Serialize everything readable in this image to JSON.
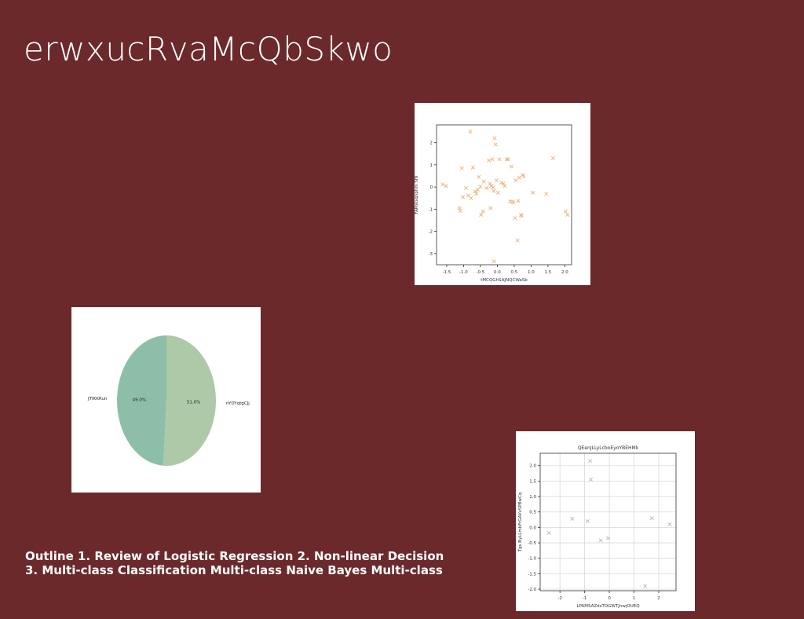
{
  "slide": {
    "title": "erwxucRvaMcQbSkwo",
    "outline_line1": "Outline 1. Review of Logistic Regression 2. Non-linear Decision",
    "outline_line2": "3. Multi-class Classification Multi-class Naive Bayes Multi-class"
  },
  "chart_data": [
    {
      "type": "scatter",
      "title": "",
      "xlabel": "tMCQGhSAJNQCWaSb",
      "ylabel": "FAPoksqnphm   SHi",
      "xlim": [
        -1.8,
        2.2
      ],
      "ylim": [
        -3.5,
        2.8
      ],
      "xticks": [
        -1.5,
        -1.0,
        -0.5,
        0.0,
        0.5,
        1.0,
        1.5,
        2.0
      ],
      "xtick_labels": [
        "-1.5",
        "-1.0",
        "-0.5",
        "0.0",
        "0.5",
        "1.0",
        "1.5",
        "2.0"
      ],
      "yticks": [
        -3,
        -2,
        -1,
        0,
        1,
        2
      ],
      "ytick_labels": [
        "-3",
        "-2",
        "-1",
        "0",
        "1",
        "2"
      ],
      "grid": false,
      "marker": "x",
      "color": "#e8b27a",
      "x": [
        -1.62,
        -1.52,
        -1.12,
        -1.1,
        -1.05,
        -1.02,
        -0.93,
        -0.86,
        -0.78,
        -0.72,
        -0.66,
        -0.62,
        -0.58,
        -0.55,
        -0.5,
        -0.48,
        -0.42,
        -0.4,
        -0.32,
        -0.25,
        -0.22,
        -0.18,
        -0.15,
        -0.12,
        -0.1,
        -0.08,
        -0.05,
        -0.02,
        0.02,
        0.06,
        0.12,
        0.18,
        0.22,
        0.28,
        0.32,
        0.38,
        0.42,
        0.45,
        0.48,
        0.52,
        0.55,
        0.6,
        0.65,
        0.7,
        0.72,
        0.75,
        0.78,
        1.05,
        1.45,
        1.65,
        2.02,
        2.08,
        -0.8,
        -0.1,
        -0.2,
        0.62
      ],
      "y": [
        0.12,
        0.05,
        -0.95,
        -1.08,
        0.85,
        -0.45,
        -0.05,
        -0.38,
        -0.5,
        0.88,
        -0.2,
        -0.3,
        -0.12,
        0.45,
        0.02,
        -1.25,
        -1.1,
        0.25,
        -0.05,
        1.2,
        0.15,
        0.05,
        1.25,
        -0.02,
        -0.18,
        2.2,
        1.92,
        0.3,
        -0.25,
        1.25,
        0.2,
        0.15,
        0.05,
        1.25,
        1.25,
        -0.65,
        0.92,
        -0.65,
        -0.7,
        -1.4,
        0.3,
        -2.4,
        0.42,
        -1.25,
        -1.3,
        0.55,
        0.48,
        -0.25,
        -0.3,
        1.3,
        -1.1,
        -1.25,
        2.5,
        -3.35,
        -0.95,
        -0.62
      ]
    },
    {
      "type": "pie",
      "title": "",
      "labels": [
        "JTIKKRun",
        "nYDYqtgCJj"
      ],
      "values": [
        49.0,
        51.0
      ],
      "value_labels": [
        "49.0%",
        "51.0%"
      ],
      "colors": [
        "#8dbfa8",
        "#adc9a8"
      ]
    },
    {
      "type": "scatter",
      "title": "QEenJLLyLcboEyoYBEHMk",
      "xlabel": "LPAMSAZdsTOGWTJnwjOUEQ",
      "ylabel": "Tgs ByLLmbFrGAVv5PBwCq",
      "xlim": [
        -2.8,
        2.7
      ],
      "ylim": [
        -2.05,
        2.4
      ],
      "xticks": [
        -2,
        -1,
        0,
        1,
        2
      ],
      "xtick_labels": [
        "-2",
        "-1",
        "0",
        "1",
        "2"
      ],
      "yticks": [
        -2.0,
        -1.5,
        -1.0,
        -0.5,
        0.0,
        0.5,
        1.0,
        1.5,
        2.0
      ],
      "ytick_labels": [
        "-2.0",
        "-1.5",
        "-1.0",
        "-0.5",
        "0.0",
        "0.5",
        "1.0",
        "1.5",
        "2.0"
      ],
      "grid": true,
      "marker": "x",
      "color": "#b8b8b8",
      "x": [
        -2.45,
        -1.5,
        -0.88,
        -0.78,
        -0.75,
        -0.35,
        -0.05,
        1.45,
        1.72,
        2.45
      ],
      "y": [
        -0.18,
        0.28,
        0.2,
        2.15,
        1.55,
        -0.42,
        -0.35,
        -1.9,
        0.3,
        0.1
      ]
    }
  ]
}
